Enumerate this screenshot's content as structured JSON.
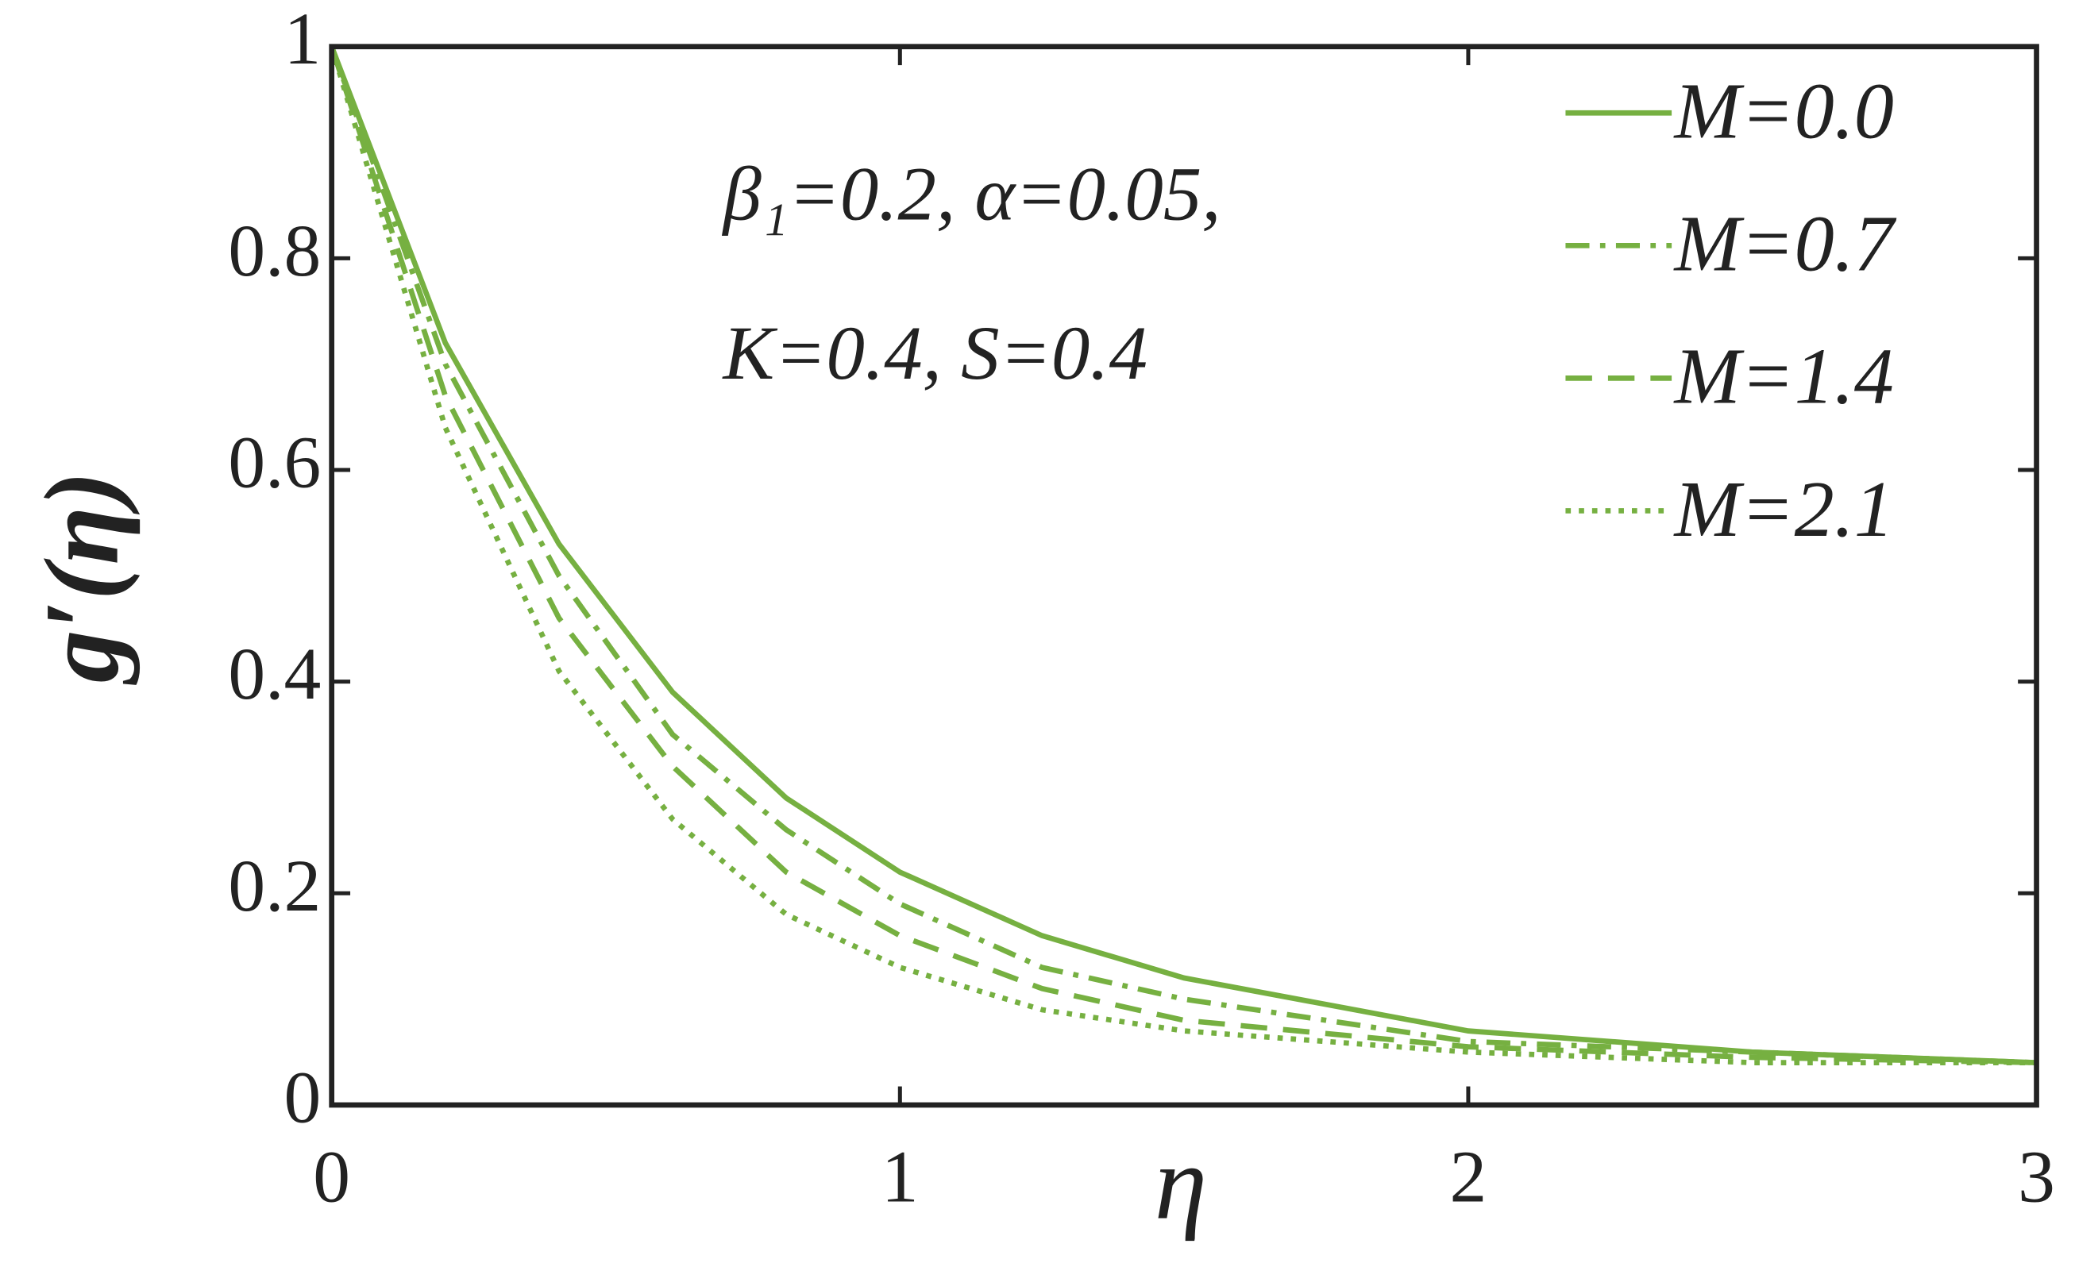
{
  "chart_data": {
    "type": "line",
    "x_label": "η",
    "y_label": "g′(η)",
    "annotations": [
      "β₁=0.2, α=0.05,",
      "K=0.4, S=0.4"
    ],
    "x": [
      0,
      0.2,
      0.4,
      0.6,
      0.8,
      1.0,
      1.25,
      1.5,
      2.0,
      2.5,
      3.0
    ],
    "series": [
      {
        "name": "M=0.0",
        "color": "#76b041",
        "dash": "solid",
        "values": [
          1,
          0.72,
          0.53,
          0.39,
          0.29,
          0.22,
          0.16,
          0.12,
          0.07,
          0.05,
          0.04
        ]
      },
      {
        "name": "M=0.7",
        "color": "#76b041",
        "dash": "dashdot",
        "values": [
          1,
          0.7,
          0.5,
          0.35,
          0.26,
          0.19,
          0.13,
          0.1,
          0.06,
          0.05,
          0.04
        ]
      },
      {
        "name": "M=1.4",
        "color": "#76b041",
        "dash": "dashed",
        "values": [
          1,
          0.67,
          0.46,
          0.32,
          0.22,
          0.16,
          0.11,
          0.08,
          0.055,
          0.045,
          0.04
        ]
      },
      {
        "name": "M=2.1",
        "color": "#76b041",
        "dash": "dotted",
        "values": [
          1,
          0.64,
          0.41,
          0.27,
          0.18,
          0.13,
          0.09,
          0.07,
          0.05,
          0.04,
          0.04
        ]
      }
    ],
    "xlim": [
      0,
      3
    ],
    "xticks": [
      0,
      1,
      2,
      3
    ],
    "ylim": [
      0,
      1
    ],
    "yticks": [
      0,
      0.2,
      0.4,
      0.6,
      0.8,
      1
    ],
    "legend": "upper right",
    "grid": false
  }
}
